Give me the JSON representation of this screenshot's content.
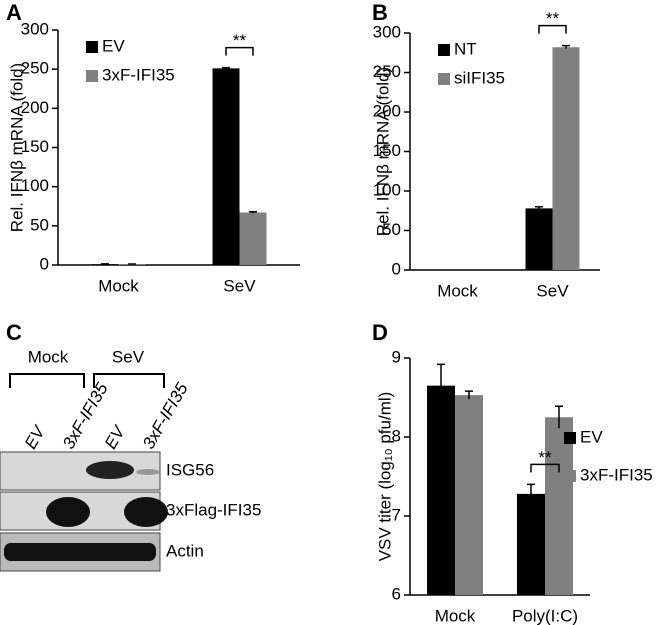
{
  "panels": [
    "A",
    "B",
    "C",
    "D"
  ],
  "chart_data": [
    {
      "type": "bar",
      "ylabel": "Rel. IFNβ mRNA (fold)",
      "categories": [
        "Mock",
        "SeV"
      ],
      "series": [
        {
          "name": "EV",
          "color": "#000000",
          "values": [
            1,
            251
          ],
          "errors": [
            0.5,
            1
          ]
        },
        {
          "name": "3xF-IFI35",
          "color": "#808080",
          "values": [
            1,
            67
          ],
          "errors": [
            0.3,
            1
          ]
        }
      ],
      "ylim": [
        0,
        300
      ],
      "yticks": [
        0,
        50,
        100,
        150,
        200,
        250,
        300
      ],
      "legend": "upper left",
      "annotation": "**"
    },
    {
      "type": "bar",
      "ylabel": "Rel. IFNβ mRNA (fold)",
      "categories": [
        "Mock",
        "SeV"
      ],
      "series": [
        {
          "name": "NT",
          "color": "#000000",
          "values": [
            0,
            78
          ],
          "errors": [
            0,
            2
          ]
        },
        {
          "name": "siIFI35",
          "color": "#808080",
          "values": [
            0,
            282
          ],
          "errors": [
            0,
            2
          ]
        }
      ],
      "ylim": [
        0,
        300
      ],
      "yticks": [
        0,
        50,
        100,
        150,
        200,
        250,
        300
      ],
      "legend": "upper left",
      "annotation": "**"
    },
    {
      "type": "bar",
      "ylabel": "VSV titer (log₁₀ pfu/ml)",
      "categories": [
        "Mock",
        "Poly(I:C)"
      ],
      "series": [
        {
          "name": "EV",
          "color": "#000000",
          "values": [
            8.65,
            7.28
          ],
          "errors": [
            0.27,
            0.12
          ]
        },
        {
          "name": "3xF-IFI35",
          "color": "#808080",
          "values": [
            8.53,
            8.25
          ],
          "errors": [
            0.05,
            0.14
          ]
        }
      ],
      "ylim": [
        6,
        9
      ],
      "yticks": [
        6,
        7,
        8,
        9
      ],
      "legend": "right",
      "annotation": "**"
    }
  ],
  "blot": {
    "groups": [
      "Mock",
      "SeV"
    ],
    "lanes": [
      "EV",
      "3xF-IFI35",
      "EV",
      "3xF-IFI35"
    ],
    "rows": [
      "ISG56",
      "3xFlag-IFI35",
      "Actin"
    ]
  }
}
